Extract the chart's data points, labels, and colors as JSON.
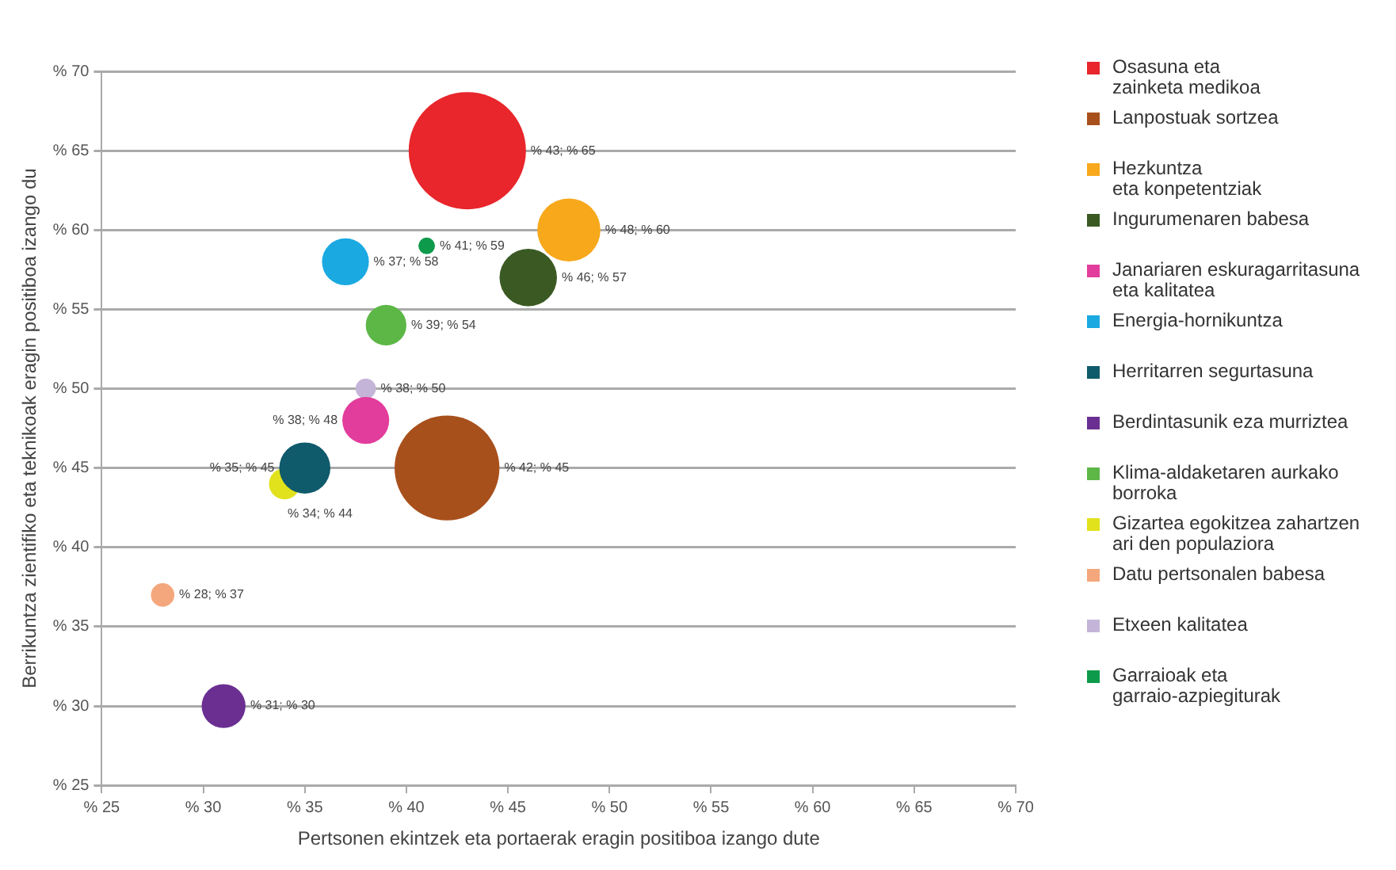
{
  "chart_data": {
    "type": "bubble",
    "xlabel": "Pertsonen ekintzek eta portaerak eragin positiboa izango dute",
    "ylabel": "Berrikuntza zientifiko eta teknikoak eragin positiboa izango du",
    "xlim": [
      25,
      70
    ],
    "ylim": [
      25,
      70
    ],
    "xticks": [
      {
        "value": 25,
        "label": "% 25"
      },
      {
        "value": 30,
        "label": "% 30"
      },
      {
        "value": 35,
        "label": "% 35"
      },
      {
        "value": 40,
        "label": "% 40"
      },
      {
        "value": 45,
        "label": "% 45"
      },
      {
        "value": 50,
        "label": "% 50"
      },
      {
        "value": 55,
        "label": "% 55"
      },
      {
        "value": 60,
        "label": "% 60"
      },
      {
        "value": 65,
        "label": "% 65"
      },
      {
        "value": 70,
        "label": "% 70"
      }
    ],
    "yticks": [
      {
        "value": 25,
        "label": "% 25"
      },
      {
        "value": 30,
        "label": "% 30"
      },
      {
        "value": 35,
        "label": "% 35"
      },
      {
        "value": 40,
        "label": "% 40"
      },
      {
        "value": 45,
        "label": "% 45"
      },
      {
        "value": 50,
        "label": "% 50"
      },
      {
        "value": 55,
        "label": "% 55"
      },
      {
        "value": 60,
        "label": "% 60"
      },
      {
        "value": 65,
        "label": "% 65"
      },
      {
        "value": 70,
        "label": "% 70"
      }
    ],
    "grid": "y",
    "legend": "right",
    "series": [
      {
        "name": "Osasuna eta\nzainketa medikoa",
        "color": "#e8262b",
        "x": [
          43
        ],
        "values": [
          65
        ],
        "sizes": [
          1
        ],
        "value_labels": [
          "% 43; % 65"
        ]
      },
      {
        "name": "Lanpostuak sortzea",
        "color": "#a8501c",
        "x": [
          42
        ],
        "values": [
          45
        ],
        "sizes": [
          0.8
        ],
        "value_labels": [
          "% 42; % 45"
        ]
      },
      {
        "name": "Hezkuntza\neta konpetentziak",
        "color": "#f7a81b",
        "x": [
          48
        ],
        "values": [
          60
        ],
        "sizes": [
          0.29
        ],
        "value_labels": [
          "% 48; % 60"
        ]
      },
      {
        "name": "Ingurumenaren babesa",
        "color": "#3b5a23",
        "x": [
          46
        ],
        "values": [
          57
        ],
        "sizes": [
          0.24
        ],
        "value_labels": [
          "% 46; % 57"
        ]
      },
      {
        "name": "Janariaren eskuragarritasuna\neta kalitatea",
        "color": "#e23d9c",
        "x": [
          38
        ],
        "values": [
          48
        ],
        "sizes": [
          0.16
        ],
        "value_labels": [
          "% 38; % 48"
        ]
      },
      {
        "name": "Energia-hornikuntza",
        "color": "#1ba9e1",
        "x": [
          37
        ],
        "values": [
          58
        ],
        "sizes": [
          0.16
        ],
        "value_labels": [
          "% 37; % 58"
        ]
      },
      {
        "name": "Herritarren segurtasuna",
        "color": "#0f5a6b",
        "x": [
          35
        ],
        "values": [
          45
        ],
        "sizes": [
          0.19
        ],
        "value_labels": [
          "% 35; % 45"
        ]
      },
      {
        "name": "Berdintasunik eza murriztea",
        "color": "#6a2f91",
        "x": [
          31
        ],
        "values": [
          30
        ],
        "sizes": [
          0.14
        ],
        "value_labels": [
          "% 31; % 30"
        ]
      },
      {
        "name": "Klima-aldaketaren aurkako\nborroka",
        "color": "#5db747",
        "x": [
          39
        ],
        "values": [
          54
        ],
        "sizes": [
          0.12
        ],
        "value_labels": [
          "% 39; % 54"
        ]
      },
      {
        "name": "Gizartea egokitzea zahartzen\nari den populaziora",
        "color": "#e1e21c",
        "x": [
          34
        ],
        "values": [
          44
        ],
        "sizes": [
          0.07
        ],
        "value_labels": [
          "% 34; % 44"
        ]
      },
      {
        "name": "Datu pertsonalen babesa",
        "color": "#f4a77c",
        "x": [
          28
        ],
        "values": [
          37
        ],
        "sizes": [
          0.04
        ],
        "value_labels": [
          "% 28; % 37"
        ]
      },
      {
        "name": "Etxeen kalitatea",
        "color": "#c4b5d8",
        "x": [
          38
        ],
        "values": [
          50
        ],
        "sizes": [
          0.03
        ],
        "value_labels": [
          "% 38; % 50"
        ]
      },
      {
        "name": "Garraioak eta\ngarraio-azpiegiturak",
        "color": "#0d9a4b",
        "x": [
          41
        ],
        "values": [
          59
        ],
        "sizes": [
          0.02
        ],
        "value_labels": [
          "% 41; % 59"
        ]
      }
    ]
  }
}
